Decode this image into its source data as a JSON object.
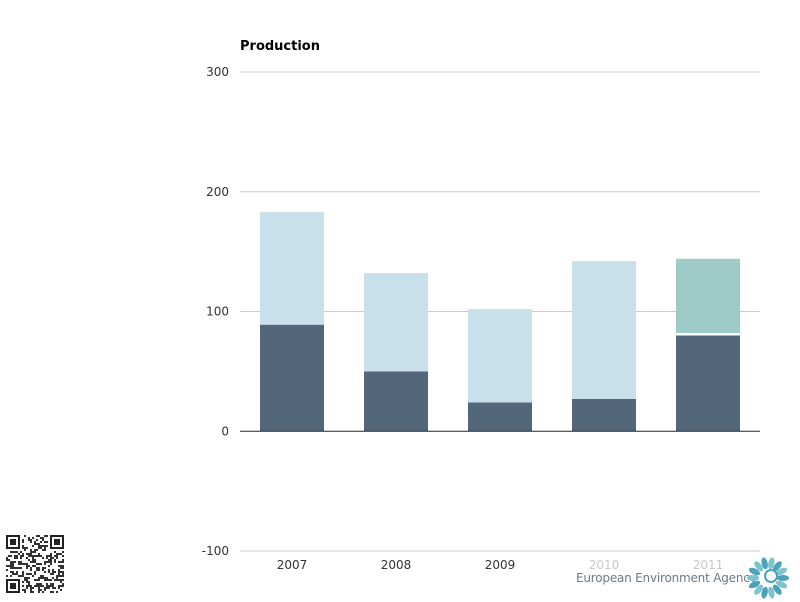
{
  "chart_data": {
    "type": "bar",
    "stacked": true,
    "title": "Production",
    "categories": [
      "2007",
      "2008",
      "2009",
      "2010",
      "2011"
    ],
    "series": [
      {
        "name": "",
        "color": "#52687a",
        "values": [
          89,
          50,
          24,
          27,
          80
        ]
      },
      {
        "name": "",
        "color": "#ffffff",
        "values": [
          0,
          0,
          0,
          0,
          2
        ]
      },
      {
        "name": "",
        "color": "#c8e0ea",
        "values": [
          94,
          82,
          78,
          115,
          0
        ]
      },
      {
        "name": "",
        "color": "#9ecac7",
        "values": [
          0,
          0,
          0,
          0,
          62
        ]
      }
    ],
    "ylim": [
      -100,
      300
    ],
    "yticks": [
      -100,
      0,
      100,
      200,
      300
    ],
    "grid": true,
    "category_label_colors": [
      "#333333",
      "#333333",
      "#333333",
      "#c8c8c8",
      "#c8c8c8"
    ]
  },
  "branding": {
    "agency": "European Environment Agency"
  },
  "icons": {
    "qr": "qr-code-icon",
    "logo": "eea-logo-icon"
  }
}
